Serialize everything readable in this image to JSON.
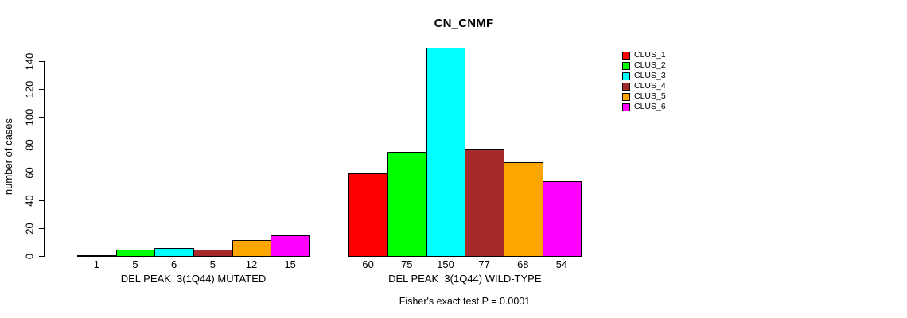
{
  "page": {
    "background": "#FFFFFF"
  },
  "chart_data": {
    "type": "bar",
    "title": "CN_CNMF",
    "ylabel": "number of cases",
    "xlabel": "",
    "ylim": [
      0,
      140
    ],
    "yticks": [
      0,
      20,
      40,
      60,
      80,
      100,
      120,
      140
    ],
    "grid": false,
    "legend_position": "right",
    "legend": [
      {
        "label": "CLUS_1",
        "color": "#FF0000"
      },
      {
        "label": "CLUS_2",
        "color": "#00FF00"
      },
      {
        "label": "CLUS_3",
        "color": "#00FFFF"
      },
      {
        "label": "CLUS_4",
        "color": "#A52A2A"
      },
      {
        "label": "CLUS_5",
        "color": "#FFA500"
      },
      {
        "label": "CLUS_6",
        "color": "#FF00FF"
      }
    ],
    "groups": [
      {
        "label": "DEL PEAK  3(1Q44) MUTATED",
        "categories": [
          "CLUS_1",
          "CLUS_2",
          "CLUS_3",
          "CLUS_4",
          "CLUS_5",
          "CLUS_6"
        ],
        "values": [
          1,
          5,
          6,
          5,
          12,
          15
        ]
      },
      {
        "label": "DEL PEAK  3(1Q44) WILD-TYPE",
        "categories": [
          "CLUS_1",
          "CLUS_2",
          "CLUS_3",
          "CLUS_4",
          "CLUS_5",
          "CLUS_6"
        ],
        "values": [
          60,
          75,
          150,
          77,
          68,
          54
        ]
      }
    ],
    "annotation": "Fisher's exact test P = 0.0001"
  }
}
